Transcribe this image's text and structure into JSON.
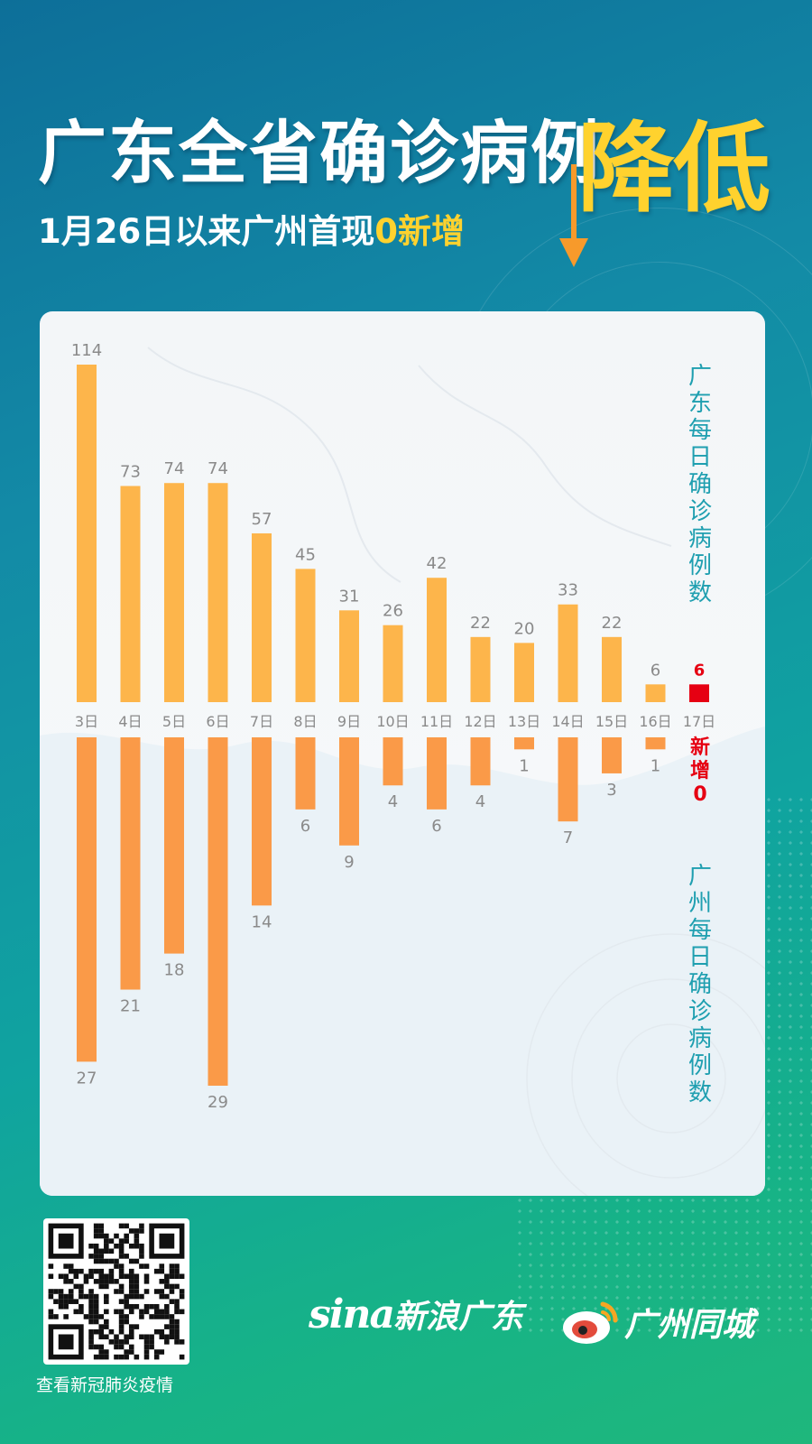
{
  "header": {
    "title": "广东全省确诊病例",
    "title_accent": "降低",
    "subtitle_prefix": "1月26日以来广州首现",
    "subtitle_highlight": "0新增"
  },
  "colors": {
    "background": "#138aa6",
    "accent_yellow": "#ffd22e",
    "guangdong_bar": "#fdb54b",
    "guangzhou_bar": "#fa9a48",
    "highlight_red": "#e60012",
    "label_teal": "#1f9fb0",
    "value_gray": "#8a8a8a"
  },
  "chart_data": {
    "type": "bar",
    "title": "",
    "categories": [
      "3日",
      "4日",
      "5日",
      "6日",
      "7日",
      "8日",
      "9日",
      "10日",
      "11日",
      "12日",
      "13日",
      "14日",
      "15日",
      "16日",
      "17日"
    ],
    "series": [
      {
        "name": "广东每日确诊病例数",
        "values": [
          114,
          73,
          74,
          74,
          57,
          45,
          31,
          26,
          42,
          22,
          20,
          33,
          22,
          6,
          6
        ],
        "direction": "up"
      },
      {
        "name": "广州每日确诊病例数",
        "values": [
          27,
          21,
          18,
          29,
          14,
          6,
          9,
          4,
          6,
          4,
          1,
          7,
          3,
          1,
          0
        ],
        "direction": "down"
      }
    ],
    "highlight_category": "17日",
    "highlight_annotation": [
      "新增",
      "0"
    ],
    "legend_labels": [
      "广东每日确诊病例数",
      "广州每日确诊病例数"
    ]
  },
  "footer": {
    "qr_caption": "查看新冠肺炎疫情",
    "logo_sina_mark": "sina",
    "logo_sina_name": "新浪广东",
    "logo_weibo_name": "广州同城"
  }
}
